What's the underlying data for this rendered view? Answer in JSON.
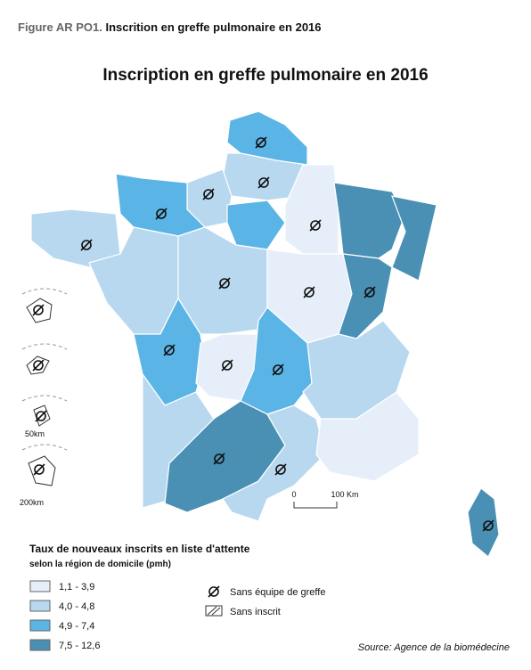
{
  "header": {
    "label": "Figure AR PO1.",
    "title": "Inscrition en greffe pulmonaire en 2016"
  },
  "map": {
    "title": "Inscription en greffe pulmonaire en 2016",
    "scale": {
      "start": "0",
      "end": "100 Km"
    },
    "inset_scales": [
      "50km",
      "200km"
    ]
  },
  "legend": {
    "title": "Taux de nouveaux inscrits en liste d'attente",
    "subtitle": "selon la région de domicile (pmh)",
    "classes": [
      "1,1 - 3,9",
      "4,0 - 4,8",
      "4,9 - 7,4",
      "7,5 - 12,6"
    ],
    "symbols": [
      "Sans équipe de greffe",
      "Sans inscrit"
    ]
  },
  "source": "Source: Agence de la biomédecine"
}
